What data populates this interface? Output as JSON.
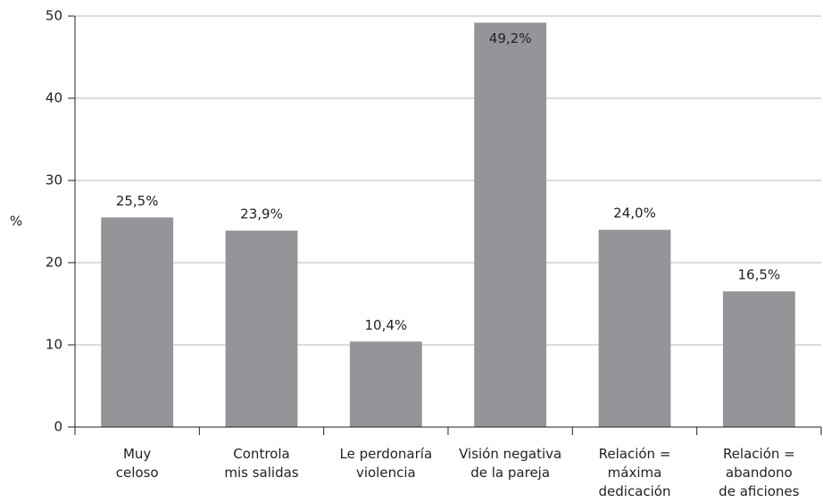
{
  "chart_data": {
    "type": "bar",
    "y_label": "%",
    "categories": [
      "Muy\nceloso",
      "Controla\nmis salidas",
      "Le perdonaría\nviolencia",
      "Visión negativa\nde la pareja",
      "Relación =\nmáxima\ndedicación",
      "Relación =\nabandono\nde aficiones"
    ],
    "values": [
      25.5,
      23.9,
      10.4,
      49.2,
      24.0,
      16.5
    ],
    "value_labels": [
      "25,5%",
      "23,9%",
      "10,4%",
      "49,2%",
      "24,0%",
      "16,5%"
    ],
    "color": "#939598",
    "ylim": [
      0,
      50
    ],
    "yticks": [
      0,
      10,
      20,
      30,
      40,
      50
    ],
    "grid": true
  }
}
